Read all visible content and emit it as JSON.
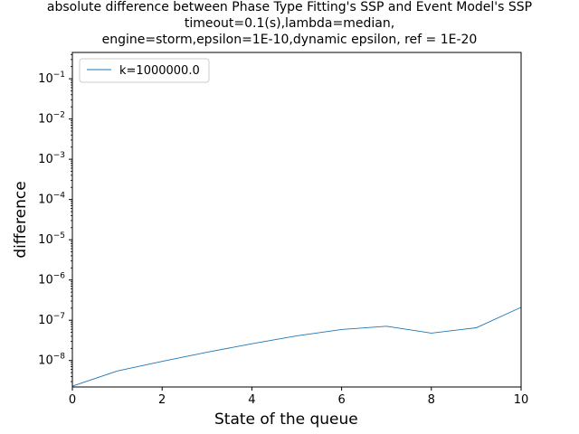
{
  "chart_data": {
    "type": "line",
    "title_lines": [
      "absolute difference between Phase Type Fitting's SSP and Event Model's SSP",
      "timeout=0.1(s),lambda=median,",
      "engine=storm,epsilon=1E-10,dynamic epsilon, ref = 1E-20"
    ],
    "xlabel": "State of the queue",
    "ylabel": "difference",
    "x_scale": "linear",
    "y_scale": "log",
    "xlim": [
      0,
      10
    ],
    "ylim": [
      2.2e-09,
      0.45
    ],
    "x_ticks": [
      0,
      2,
      4,
      6,
      8,
      10
    ],
    "y_ticks": [
      {
        "exp": -8,
        "label": "10^-8"
      },
      {
        "exp": -7,
        "label": "10^-7"
      },
      {
        "exp": -6,
        "label": "10^-6"
      },
      {
        "exp": -5,
        "label": "10^-5"
      },
      {
        "exp": -4,
        "label": "10^-4"
      },
      {
        "exp": -3,
        "label": "10^-3"
      },
      {
        "exp": -2,
        "label": "10^-2"
      },
      {
        "exp": -1,
        "label": "10^-1"
      }
    ],
    "grid": false,
    "legend_position": "upper-left",
    "series": [
      {
        "name": "k=1000000.0",
        "color": "#1f77b4",
        "x": [
          0,
          1,
          2,
          3,
          4,
          5,
          6,
          7,
          8,
          9,
          10
        ],
        "y": [
          2.3e-09,
          5.5e-09,
          9.5e-09,
          1.6e-08,
          2.6e-08,
          4.1e-08,
          5.9e-08,
          7.1e-08,
          4.8e-08,
          6.5e-08,
          2.1e-07
        ]
      }
    ]
  }
}
